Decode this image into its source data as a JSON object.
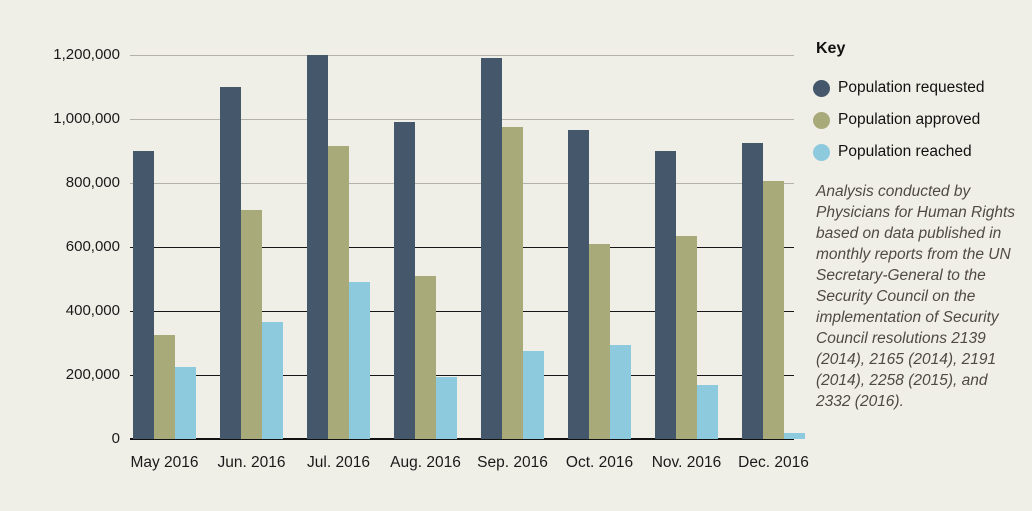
{
  "figure": {
    "background": "#f0efe7"
  },
  "legend": {
    "title": "Key",
    "items": [
      {
        "label": "Population requested",
        "color": "#45576a"
      },
      {
        "label": "Population approved",
        "color": "#a9aa7a"
      },
      {
        "label": "Population reached",
        "color": "#8dcadd"
      }
    ]
  },
  "annotation": {
    "text": "Analysis conducted by Physicians for Human Rights based on data published in monthly reports from the UN Secretary-General to the Security Council on the implementation of Security Council resolutions 2139 (2014), 2165 (2014), 2191 (2014), 2258 (2015), and 2332 (2016)."
  },
  "chart_data": {
    "type": "bar",
    "categories": [
      "May 2016",
      "Jun. 2016",
      "Jul. 2016",
      "Aug. 2016",
      "Sep. 2016",
      "Oct. 2016",
      "Nov. 2016",
      "Dec. 2016"
    ],
    "series": [
      {
        "name": "Population requested",
        "color": "#45576a",
        "values": [
          900000,
          1100000,
          1200000,
          990000,
          1190000,
          965000,
          900000,
          925000
        ]
      },
      {
        "name": "Population approved",
        "color": "#a9aa7a",
        "values": [
          325000,
          715000,
          915000,
          510000,
          975000,
          610000,
          635000,
          805000
        ]
      },
      {
        "name": "Population reached",
        "color": "#8dcadd",
        "values": [
          225000,
          365000,
          490000,
          195000,
          275000,
          295000,
          170000,
          20000
        ]
      }
    ],
    "ylim": [
      0,
      1200000
    ],
    "ytick_interval": 200000,
    "ytick_labels": [
      "0",
      "200,000",
      "400,000",
      "600,000",
      "800,000",
      "1,000,000",
      "1,200,000"
    ],
    "grid": "horizontal",
    "gridline_color_upper": "#b3b1a8",
    "gridline_color_lower": "#161616",
    "axis_color": "#111111",
    "legend_position": "right"
  }
}
